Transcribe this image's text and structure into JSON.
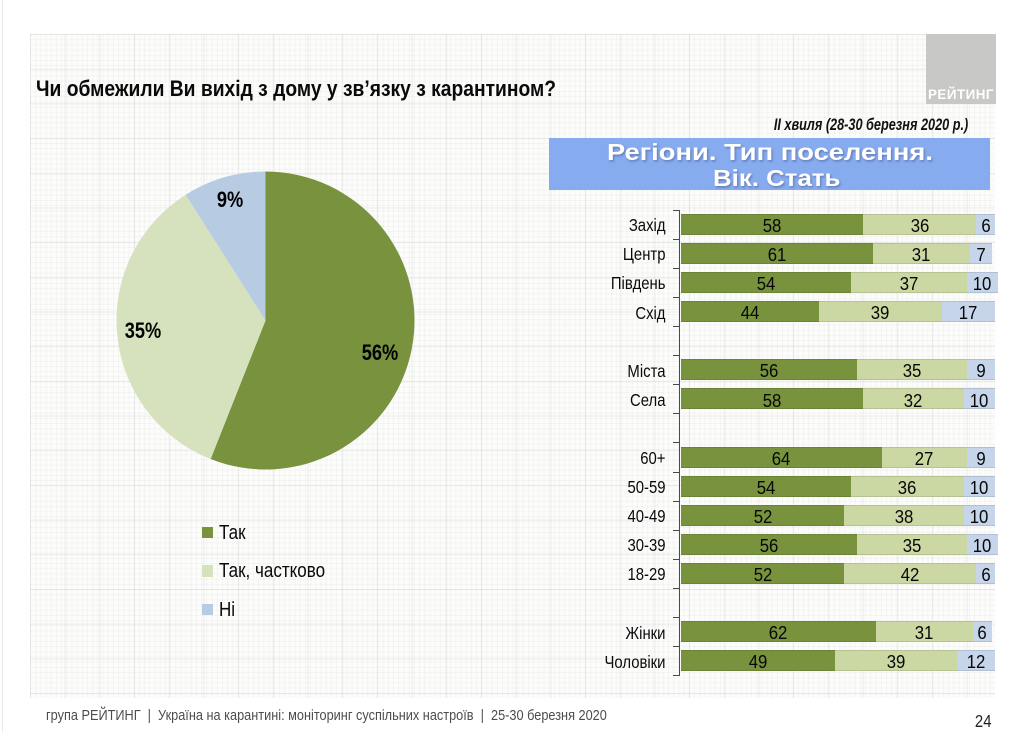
{
  "slide": {
    "title": "Чи обмежили Ви вихід з дому у зв’язку з карантином?",
    "wave_note": "ІІ хвиля (28-30 березня 2020 р.)",
    "section_header": {
      "line1": "Регіони. Тип поселення.",
      "line2": "Вік. Стать"
    },
    "logo_text": "РЕЙТИНГ",
    "footer_text": "група РЕЙТИНГ  |  Україна на карантині: моніторинг суспільних настроїв  |  25-30 березня 2020",
    "page_number": "24"
  },
  "colors": {
    "pie_yes": "#78923d",
    "pie_partly": "#d6e1bd",
    "pie_no": "#b7cbe3",
    "bar_yes": "#78923d",
    "bar_partly": "#cbd8a4",
    "bar_no": "#c6d5ea",
    "band_blue": "#87abef",
    "logo_gray": "#c8c8c7"
  },
  "chart_data": [
    {
      "type": "pie",
      "question": "Чи обмежили Ви вихід з дому у зв’язку з карантином?",
      "slices": [
        {
          "label": "Так",
          "value": 56,
          "text": "56%",
          "color": "#78923d"
        },
        {
          "label": "Так, частково",
          "value": 35,
          "text": "35%",
          "color": "#d6e1bd"
        },
        {
          "label": "Ні",
          "value": 9,
          "text": "9%",
          "color": "#b7cbe3"
        }
      ],
      "start_angle_deg": 0,
      "clockwise": true,
      "label_positions": [
        {
          "x": 379.7,
          "y": 352.9
        },
        {
          "x": 142.5,
          "y": 330.5
        },
        {
          "x": 229.9,
          "y": 199.6
        }
      ],
      "legend_position": "below-left",
      "legend_swatch_colors": [
        "#78923d",
        "#d6e1bd",
        "#b7cbe3"
      ]
    },
    {
      "type": "bar",
      "orientation": "horizontal",
      "stacked": true,
      "xlim": [
        0,
        100
      ],
      "series_names": [
        "Так",
        "Так, частково",
        "Ні"
      ],
      "series_colors": [
        "#78923d",
        "#cbd8a4",
        "#c6d5ea"
      ],
      "groups": [
        {
          "name": "Регіони",
          "rows": [
            {
              "category": "Захід",
              "values": [
                58,
                36,
                6
              ]
            },
            {
              "category": "Центр",
              "values": [
                61,
                31,
                7
              ]
            },
            {
              "category": "Південь",
              "values": [
                54,
                37,
                10
              ]
            },
            {
              "category": "Схід",
              "values": [
                44,
                39,
                17
              ]
            }
          ]
        },
        {
          "name": "Тип поселення",
          "rows": [
            {
              "category": "Міста",
              "values": [
                56,
                35,
                9
              ]
            },
            {
              "category": "Села",
              "values": [
                58,
                32,
                10
              ]
            }
          ]
        },
        {
          "name": "Вік",
          "rows": [
            {
              "category": "60+",
              "values": [
                64,
                27,
                9
              ]
            },
            {
              "category": "50-59",
              "values": [
                54,
                36,
                10
              ]
            },
            {
              "category": "40-49",
              "values": [
                52,
                38,
                10
              ]
            },
            {
              "category": "30-39",
              "values": [
                56,
                35,
                10
              ]
            },
            {
              "category": "18-29",
              "values": [
                52,
                42,
                6
              ]
            }
          ]
        },
        {
          "name": "Стать",
          "rows": [
            {
              "category": "Жінки",
              "values": [
                62,
                31,
                6
              ]
            },
            {
              "category": "Чоловіки",
              "values": [
                49,
                39,
                12
              ]
            }
          ]
        }
      ]
    }
  ]
}
